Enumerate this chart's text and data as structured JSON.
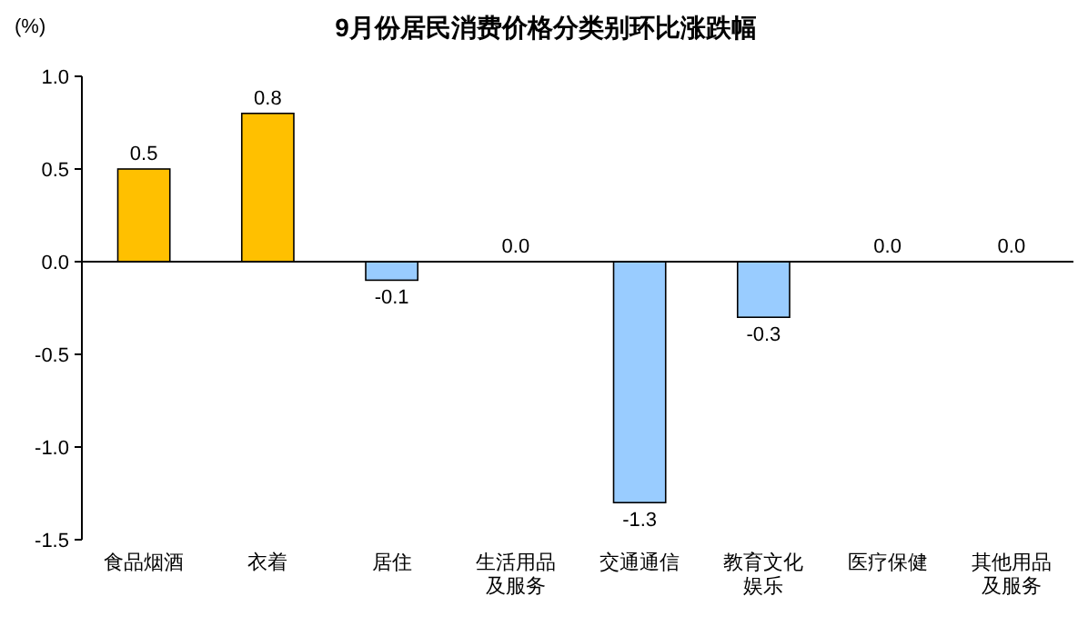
{
  "chart_data": {
    "type": "bar",
    "title": "9月份居民消费价格分类别环比涨跌幅",
    "ylabel": "(%)",
    "categories": [
      "食品烟酒",
      "衣着",
      "居住",
      "生活用品及服务",
      "交通通信",
      "教育文化娱乐",
      "医疗保健",
      "其他用品及服务"
    ],
    "values": [
      0.5,
      0.8,
      -0.1,
      0.0,
      -1.3,
      -0.3,
      0.0,
      0.0
    ],
    "colors": [
      "#ffc000",
      "#ffc000",
      "#99ccff",
      "#99ccff",
      "#99ccff",
      "#99ccff",
      "#99ccff",
      "#99ccff"
    ],
    "ylim": [
      -1.5,
      1.0
    ],
    "yticks": [
      {
        "value": 1.0,
        "label": "1.0"
      },
      {
        "value": 0.5,
        "label": "0.5"
      },
      {
        "value": 0.0,
        "label": "0.0"
      },
      {
        "value": -0.5,
        "label": "-0.5"
      },
      {
        "value": -1.0,
        "label": "-1.0"
      },
      {
        "value": -1.5,
        "label": "-1.5"
      }
    ],
    "value_labels": [
      "0.5",
      "0.8",
      "-0.1",
      "0.0",
      "-1.3",
      "-0.3",
      "0.0",
      "0.0"
    ]
  }
}
